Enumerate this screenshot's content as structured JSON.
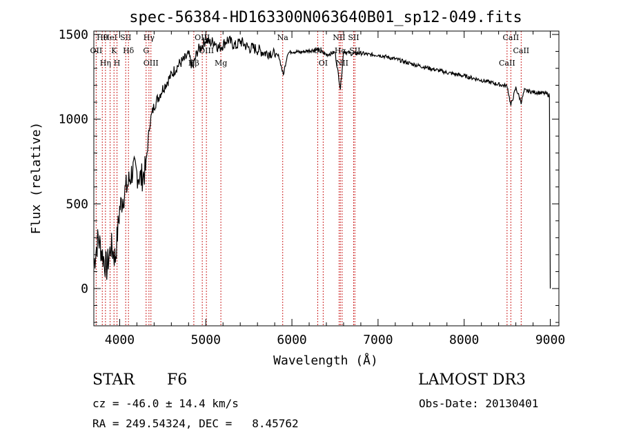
{
  "chart_data": {
    "type": "line",
    "title": "spec-56384-HD163300N063640B01_sp12-049.fits",
    "xlabel": "Wavelength (Å)",
    "ylabel": "Flux (relative)",
    "xlim": [
      3700,
      9100
    ],
    "ylim": [
      -220,
      1520
    ],
    "xticks": [
      4000,
      5000,
      6000,
      7000,
      8000,
      9000
    ],
    "yticks": [
      0,
      500,
      1000,
      1500
    ],
    "grid": false,
    "series": [
      {
        "name": "flux",
        "x": [
          3700,
          3750,
          3800,
          3850,
          3900,
          3950,
          4000,
          4050,
          4100,
          4150,
          4200,
          4250,
          4300,
          4350,
          4400,
          4450,
          4500,
          4550,
          4600,
          4650,
          4700,
          4750,
          4800,
          4850,
          4900,
          4950,
          5000,
          5050,
          5100,
          5150,
          5200,
          5250,
          5300,
          5350,
          5400,
          5450,
          5500,
          5550,
          5600,
          5650,
          5700,
          5750,
          5800,
          5850,
          5900,
          5950,
          6000,
          6100,
          6200,
          6300,
          6400,
          6500,
          6563,
          6600,
          6700,
          6800,
          6900,
          7000,
          7200,
          7400,
          7600,
          7800,
          8000,
          8200,
          8400,
          8500,
          8542,
          8600,
          8662,
          8700,
          8800,
          8900,
          8950,
          8990,
          9000
        ],
        "values": [
          150,
          300,
          200,
          120,
          250,
          180,
          470,
          560,
          620,
          700,
          680,
          650,
          700,
          980,
          1080,
          1130,
          1180,
          1220,
          1260,
          1300,
          1330,
          1350,
          1380,
          1300,
          1400,
          1430,
          1470,
          1450,
          1460,
          1420,
          1440,
          1470,
          1450,
          1430,
          1460,
          1440,
          1420,
          1420,
          1410,
          1400,
          1390,
          1395,
          1380,
          1370,
          1260,
          1390,
          1400,
          1395,
          1405,
          1410,
          1380,
          1395,
          1180,
          1400,
          1385,
          1390,
          1380,
          1380,
          1355,
          1325,
          1300,
          1275,
          1255,
          1230,
          1205,
          1195,
          1080,
          1185,
          1100,
          1170,
          1160,
          1155,
          1150,
          1140,
          0
        ]
      }
    ],
    "lines": [
      {
        "name": "Hθ",
        "wavelength": 3798
      },
      {
        "name": "OII",
        "wavelength": 3727
      },
      {
        "name": "Hη",
        "wavelength": 3835
      },
      {
        "name": "HeI",
        "wavelength": 3889
      },
      {
        "name": "K",
        "wavelength": 3934
      },
      {
        "name": "H",
        "wavelength": 3969
      },
      {
        "name": "SII",
        "wavelength": 4070
      },
      {
        "name": "Hδ",
        "wavelength": 4102
      },
      {
        "name": "OIII",
        "wavelength": 4363
      },
      {
        "name": "Hγ",
        "wavelength": 4340
      },
      {
        "name": "G",
        "wavelength": 4307
      },
      {
        "name": "Hβ",
        "wavelength": 4861
      },
      {
        "name": "OIII",
        "wavelength": 4959
      },
      {
        "name": "OIII",
        "wavelength": 5007
      },
      {
        "name": "Mg",
        "wavelength": 5175
      },
      {
        "name": "Na",
        "wavelength": 5893
      },
      {
        "name": "OI",
        "wavelength": 6300
      },
      {
        "name": "OI",
        "wavelength": 6363
      },
      {
        "name": "NII",
        "wavelength": 6548
      },
      {
        "name": "Hα",
        "wavelength": 6563
      },
      {
        "name": "NII",
        "wavelength": 6583
      },
      {
        "name": "SII",
        "wavelength": 6716
      },
      {
        "name": "SII",
        "wavelength": 6731
      },
      {
        "name": "CaII",
        "wavelength": 8498
      },
      {
        "name": "CaII",
        "wavelength": 8542
      },
      {
        "name": "CaII",
        "wavelength": 8662
      }
    ]
  },
  "footer": {
    "object_class": "STAR",
    "subclass": "F6",
    "survey": "LAMOST DR3",
    "cz": "cz = -46.0 ± 14.4 km/s",
    "obs_date": "Obs-Date: 20130401",
    "radec": "RA = 249.54324, DEC =   8.45762"
  },
  "colors": {
    "spectrum": "#000000",
    "line_marker": "#cc2222",
    "axis": "#000000",
    "background": "#ffffff"
  }
}
